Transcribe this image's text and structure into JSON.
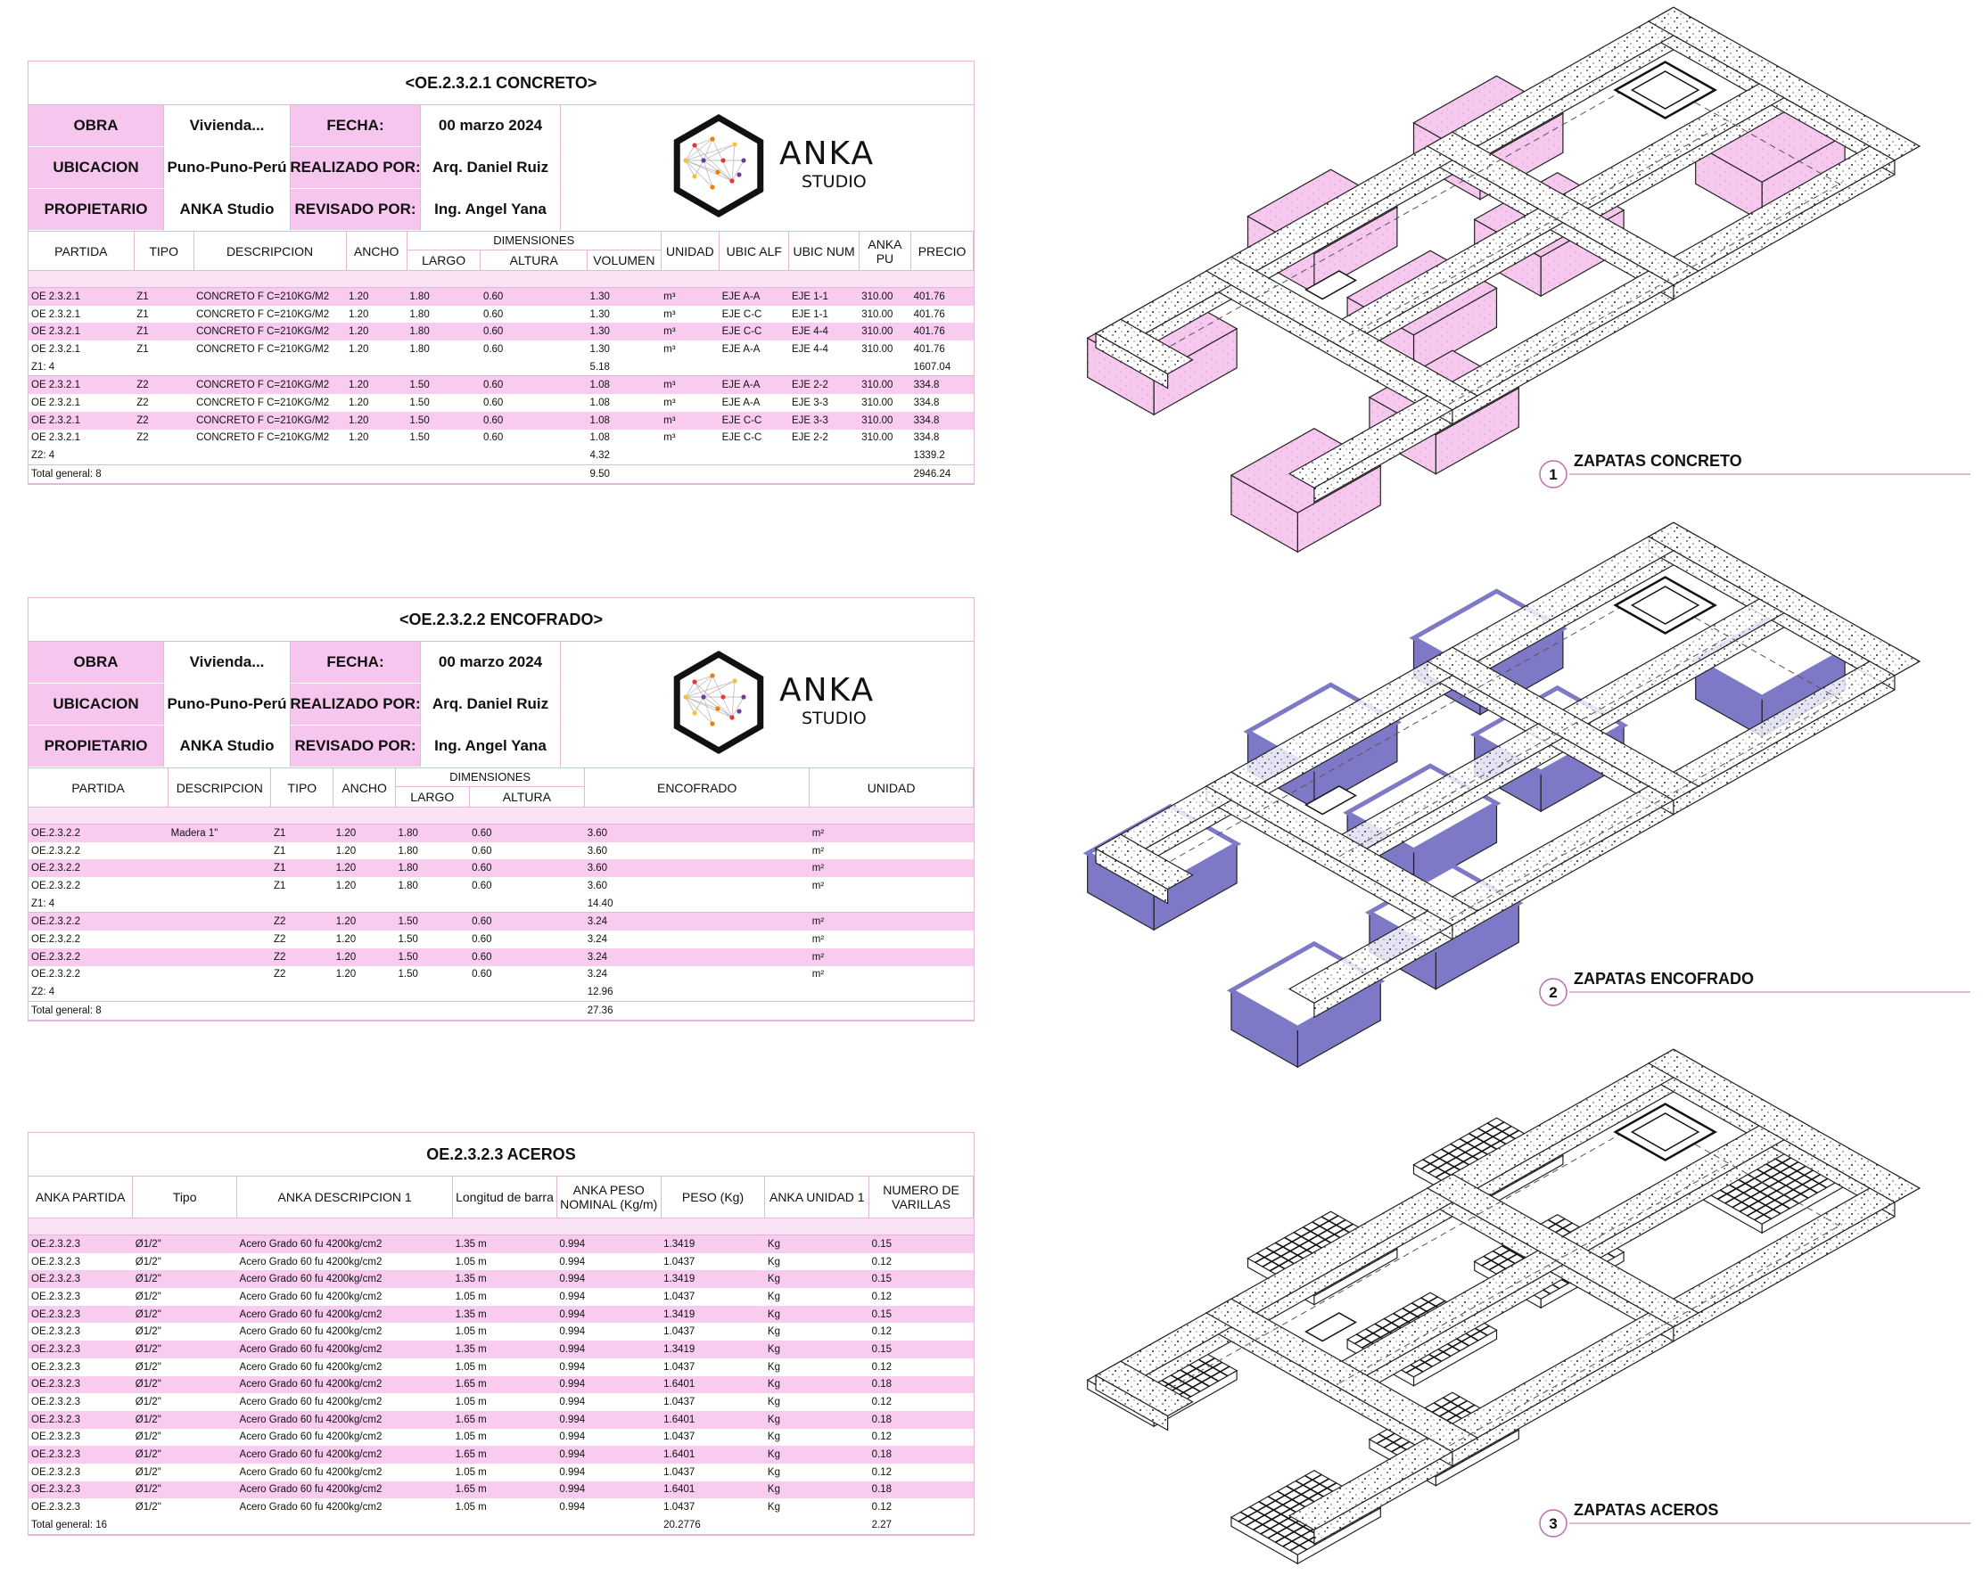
{
  "schedules": [
    {
      "title": "<OE.2.3.2.1 CONCRETO>",
      "info": [
        [
          "OBRA",
          "Vivienda...",
          "FECHA:",
          "00 marzo 2024"
        ],
        [
          "UBICACION",
          "Puno-Puno-Perú",
          "REALIZADO POR:",
          "Arq. Daniel Ruiz"
        ],
        [
          "PROPIETARIO",
          "ANKA Studio",
          "REVISADO POR:",
          "Ing. Angel Yana"
        ]
      ],
      "logo": [
        "ANKA",
        "STUDIO"
      ],
      "columns": [
        "PARTIDA",
        "TIPO",
        "DESCRIPCION",
        "ANCHO",
        {
          "label": "DIMENSIONES",
          "sub": [
            "LARGO",
            "ALTURA",
            "VOLUMEN"
          ]
        },
        "UNIDAD",
        "UBIC ALF",
        "UBIC NUM",
        "ANKA PU",
        "PRECIO"
      ],
      "groups": [
        {
          "rows": [
            [
              "OE 2.3.2.1",
              "Z1",
              "CONCRETO F C=210KG/M2",
              "1.20",
              "1.80",
              "0.60",
              "1.30",
              "m³",
              "EJE A-A",
              "EJE 1-1",
              "310.00",
              "401.76"
            ],
            [
              "OE 2.3.2.1",
              "Z1",
              "CONCRETO F C=210KG/M2",
              "1.20",
              "1.80",
              "0.60",
              "1.30",
              "m³",
              "EJE C-C",
              "EJE 1-1",
              "310.00",
              "401.76"
            ],
            [
              "OE 2.3.2.1",
              "Z1",
              "CONCRETO F C=210KG/M2",
              "1.20",
              "1.80",
              "0.60",
              "1.30",
              "m³",
              "EJE C-C",
              "EJE 4-4",
              "310.00",
              "401.76"
            ],
            [
              "OE 2.3.2.1",
              "Z1",
              "CONCRETO F C=210KG/M2",
              "1.20",
              "1.80",
              "0.60",
              "1.30",
              "m³",
              "EJE A-A",
              "EJE 4-4",
              "310.00",
              "401.76"
            ]
          ],
          "subtotal": [
            "Z1: 4",
            null,
            null,
            null,
            null,
            null,
            "5.18",
            null,
            null,
            null,
            null,
            "1607.04"
          ]
        },
        {
          "rows": [
            [
              "OE 2.3.2.1",
              "Z2",
              "CONCRETO F C=210KG/M2",
              "1.20",
              "1.50",
              "0.60",
              "1.08",
              "m³",
              "EJE A-A",
              "EJE 2-2",
              "310.00",
              "334.8"
            ],
            [
              "OE 2.3.2.1",
              "Z2",
              "CONCRETO F C=210KG/M2",
              "1.20",
              "1.50",
              "0.60",
              "1.08",
              "m³",
              "EJE A-A",
              "EJE 3-3",
              "310.00",
              "334.8"
            ],
            [
              "OE 2.3.2.1",
              "Z2",
              "CONCRETO F C=210KG/M2",
              "1.20",
              "1.50",
              "0.60",
              "1.08",
              "m³",
              "EJE C-C",
              "EJE 3-3",
              "310.00",
              "334.8"
            ],
            [
              "OE 2.3.2.1",
              "Z2",
              "CONCRETO F C=210KG/M2",
              "1.20",
              "1.50",
              "0.60",
              "1.08",
              "m³",
              "EJE C-C",
              "EJE 2-2",
              "310.00",
              "334.8"
            ]
          ],
          "subtotal": [
            "Z2: 4",
            null,
            null,
            null,
            null,
            null,
            "4.32",
            null,
            null,
            null,
            null,
            "1339.2"
          ]
        }
      ],
      "total": [
        "Total general: 8",
        null,
        null,
        null,
        null,
        null,
        "9.50",
        null,
        null,
        null,
        null,
        "2946.24"
      ]
    },
    {
      "title": "<OE.2.3.2.2 ENCOFRADO>",
      "info": [
        [
          "OBRA",
          "Vivienda...",
          "FECHA:",
          "00 marzo 2024"
        ],
        [
          "UBICACION",
          "Puno-Puno-Perú",
          "REALIZADO POR:",
          "Arq. Daniel Ruiz"
        ],
        [
          "PROPIETARIO",
          "ANKA Studio",
          "REVISADO POR:",
          "Ing. Angel Yana"
        ]
      ],
      "logo": [
        "ANKA",
        "STUDIO"
      ],
      "columns": [
        "PARTIDA",
        "DESCRIPCION",
        "TIPO",
        "ANCHO",
        {
          "label": "DIMENSIONES",
          "sub": [
            "LARGO",
            "ALTURA"
          ]
        },
        "ENCOFRADO",
        "UNIDAD"
      ],
      "groups": [
        {
          "rows": [
            [
              "OE.2.3.2.2",
              "Madera 1\"",
              "Z1",
              "1.20",
              "1.80",
              "0.60",
              "3.60",
              "m²"
            ],
            [
              "OE.2.3.2.2",
              null,
              "Z1",
              "1.20",
              "1.80",
              "0.60",
              "3.60",
              "m²"
            ],
            [
              "OE.2.3.2.2",
              null,
              "Z1",
              "1.20",
              "1.80",
              "0.60",
              "3.60",
              "m²"
            ],
            [
              "OE.2.3.2.2",
              null,
              "Z1",
              "1.20",
              "1.80",
              "0.60",
              "3.60",
              "m²"
            ]
          ],
          "subtotal": [
            "Z1: 4",
            null,
            null,
            null,
            null,
            null,
            "14.40",
            null
          ]
        },
        {
          "rows": [
            [
              "OE.2.3.2.2",
              null,
              "Z2",
              "1.20",
              "1.50",
              "0.60",
              "3.24",
              "m²"
            ],
            [
              "OE.2.3.2.2",
              null,
              "Z2",
              "1.20",
              "1.50",
              "0.60",
              "3.24",
              "m²"
            ],
            [
              "OE.2.3.2.2",
              null,
              "Z2",
              "1.20",
              "1.50",
              "0.60",
              "3.24",
              "m²"
            ],
            [
              "OE.2.3.2.2",
              null,
              "Z2",
              "1.20",
              "1.50",
              "0.60",
              "3.24",
              "m²"
            ]
          ],
          "subtotal": [
            "Z2: 4",
            null,
            null,
            null,
            null,
            null,
            "12.96",
            null
          ]
        }
      ],
      "total": [
        "Total general: 8",
        null,
        null,
        null,
        null,
        null,
        "27.36",
        null
      ]
    },
    {
      "title": "OE.2.3.2.3 ACEROS",
      "columns": [
        "ANKA PARTIDA",
        "Tipo",
        "ANKA DESCRIPCION 1",
        "Longitud de barra",
        "ANKA PESO NOMINAL (Kg/m)",
        "PESO (Kg)",
        "ANKA UNIDAD 1",
        "NUMERO DE VARILLAS"
      ],
      "groups": [
        {
          "rows": [
            [
              "OE.2.3.2.3",
              "Ø1/2\"",
              "Acero Grado 60 fu 4200kg/cm2",
              "1.35 m",
              "0.994",
              "1.3419",
              "Kg",
              "0.15"
            ],
            [
              "OE.2.3.2.3",
              "Ø1/2\"",
              "Acero Grado 60 fu 4200kg/cm2",
              "1.05 m",
              "0.994",
              "1.0437",
              "Kg",
              "0.12"
            ],
            [
              "OE.2.3.2.3",
              "Ø1/2\"",
              "Acero Grado 60 fu 4200kg/cm2",
              "1.35 m",
              "0.994",
              "1.3419",
              "Kg",
              "0.15"
            ],
            [
              "OE.2.3.2.3",
              "Ø1/2\"",
              "Acero Grado 60 fu 4200kg/cm2",
              "1.05 m",
              "0.994",
              "1.0437",
              "Kg",
              "0.12"
            ],
            [
              "OE.2.3.2.3",
              "Ø1/2\"",
              "Acero Grado 60 fu 4200kg/cm2",
              "1.35 m",
              "0.994",
              "1.3419",
              "Kg",
              "0.15"
            ],
            [
              "OE.2.3.2.3",
              "Ø1/2\"",
              "Acero Grado 60 fu 4200kg/cm2",
              "1.05 m",
              "0.994",
              "1.0437",
              "Kg",
              "0.12"
            ],
            [
              "OE.2.3.2.3",
              "Ø1/2\"",
              "Acero Grado 60 fu 4200kg/cm2",
              "1.35 m",
              "0.994",
              "1.3419",
              "Kg",
              "0.15"
            ],
            [
              "OE.2.3.2.3",
              "Ø1/2\"",
              "Acero Grado 60 fu 4200kg/cm2",
              "1.05 m",
              "0.994",
              "1.0437",
              "Kg",
              "0.12"
            ],
            [
              "OE.2.3.2.3",
              "Ø1/2\"",
              "Acero Grado 60 fu 4200kg/cm2",
              "1.65 m",
              "0.994",
              "1.6401",
              "Kg",
              "0.18"
            ],
            [
              "OE.2.3.2.3",
              "Ø1/2\"",
              "Acero Grado 60 fu 4200kg/cm2",
              "1.05 m",
              "0.994",
              "1.0437",
              "Kg",
              "0.12"
            ],
            [
              "OE.2.3.2.3",
              "Ø1/2\"",
              "Acero Grado 60 fu 4200kg/cm2",
              "1.65 m",
              "0.994",
              "1.6401",
              "Kg",
              "0.18"
            ],
            [
              "OE.2.3.2.3",
              "Ø1/2\"",
              "Acero Grado 60 fu 4200kg/cm2",
              "1.05 m",
              "0.994",
              "1.0437",
              "Kg",
              "0.12"
            ],
            [
              "OE.2.3.2.3",
              "Ø1/2\"",
              "Acero Grado 60 fu 4200kg/cm2",
              "1.65 m",
              "0.994",
              "1.6401",
              "Kg",
              "0.18"
            ],
            [
              "OE.2.3.2.3",
              "Ø1/2\"",
              "Acero Grado 60 fu 4200kg/cm2",
              "1.05 m",
              "0.994",
              "1.0437",
              "Kg",
              "0.12"
            ],
            [
              "OE.2.3.2.3",
              "Ø1/2\"",
              "Acero Grado 60 fu 4200kg/cm2",
              "1.65 m",
              "0.994",
              "1.6401",
              "Kg",
              "0.18"
            ],
            [
              "OE.2.3.2.3",
              "Ø1/2\"",
              "Acero Grado 60 fu 4200kg/cm2",
              "1.05 m",
              "0.994",
              "1.0437",
              "Kg",
              "0.12"
            ]
          ]
        }
      ],
      "total": [
        "Total general: 16",
        null,
        null,
        null,
        null,
        "20.2776",
        null,
        "2.27"
      ]
    }
  ],
  "drawings": [
    {
      "number": "1",
      "title": "ZAPATAS CONCRETO"
    },
    {
      "number": "2",
      "title": "ZAPATAS ENCOFRADO"
    },
    {
      "number": "3",
      "title": "ZAPATAS ACEROS"
    }
  ]
}
